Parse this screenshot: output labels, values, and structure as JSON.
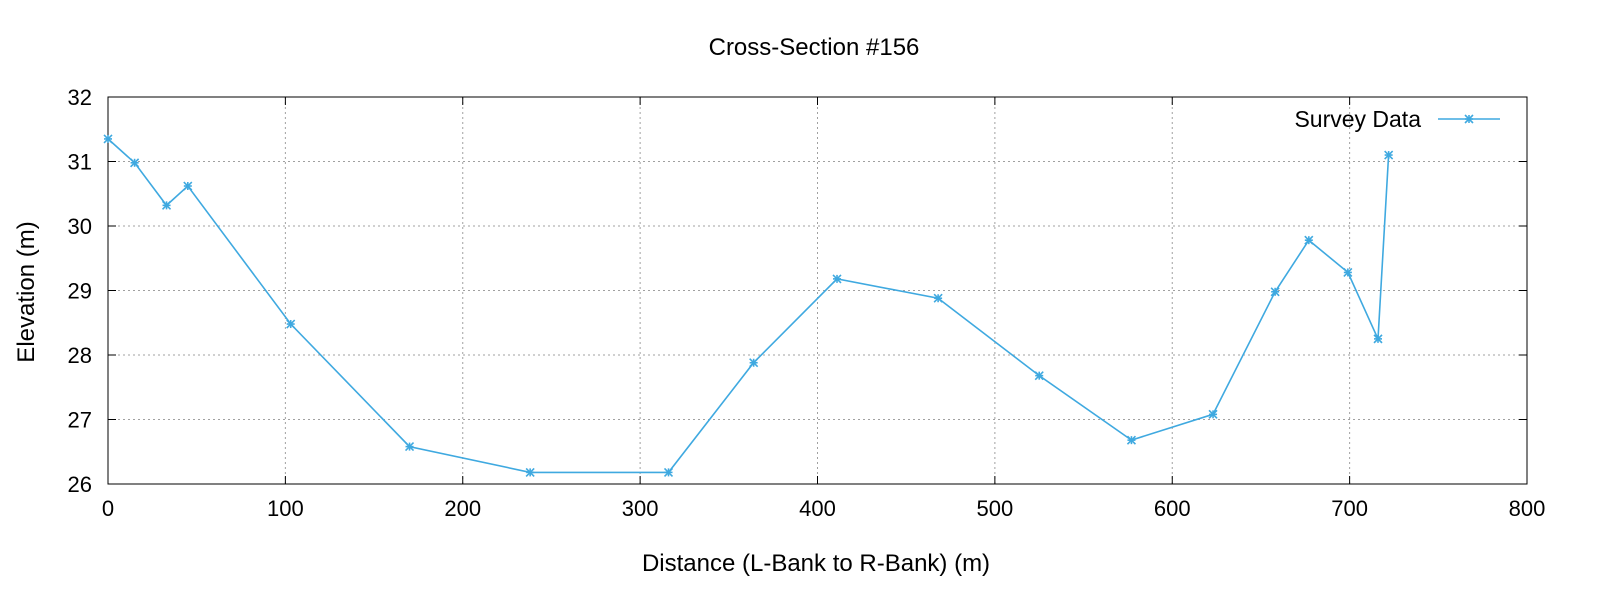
{
  "chart_data": {
    "type": "line",
    "title": "Cross-Section #156",
    "xlabel": "Distance (L-Bank to R-Bank) (m)",
    "ylabel": "Elevation (m)",
    "xlim": [
      0,
      800
    ],
    "ylim": [
      26,
      32
    ],
    "xticks": [
      0,
      100,
      200,
      300,
      400,
      500,
      600,
      700,
      800
    ],
    "yticks": [
      26,
      27,
      28,
      29,
      30,
      31,
      32
    ],
    "grid": true,
    "legend_position": "top-right",
    "series": [
      {
        "name": "Survey Data",
        "color": "#3fa9e0",
        "marker": "asterisk",
        "x": [
          0,
          15,
          33,
          45,
          103,
          170,
          238,
          316,
          364,
          411,
          468,
          525,
          577,
          623,
          658,
          677,
          699,
          716,
          722
        ],
        "y": [
          31.35,
          30.98,
          30.32,
          30.62,
          28.48,
          26.58,
          26.18,
          26.18,
          27.88,
          29.18,
          28.88,
          27.68,
          26.68,
          27.08,
          28.98,
          29.78,
          29.28,
          28.25,
          31.1
        ]
      }
    ]
  }
}
